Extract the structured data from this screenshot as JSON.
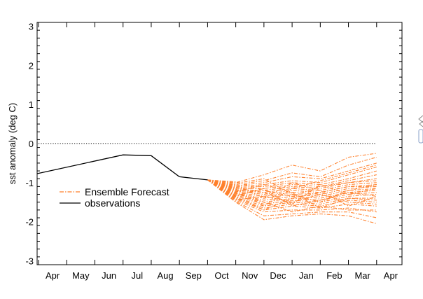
{
  "chart_data": {
    "type": "line",
    "ylabel": "sst anomaly (deg C)",
    "xlabel": "",
    "x_tick_labels": [
      "Apr",
      "May",
      "Jun",
      "Jul",
      "Aug",
      "Sep",
      "Oct",
      "Nov",
      "Dec",
      "Jan",
      "Feb",
      "Mar",
      "Apr"
    ],
    "ylim": [
      -3.1,
      3.1
    ],
    "y_ticks": [
      -3,
      -2,
      -1,
      0,
      1,
      2,
      3
    ],
    "xlim": [
      -0.55,
      12.4
    ],
    "reference_line": {
      "y": 0,
      "style": "dotted",
      "x_range": [
        -0.5,
        11.5
      ]
    },
    "legend": {
      "placement": "lower-left",
      "entries": [
        {
          "label": "Ensemble Forecast",
          "style": "dash-dot",
          "color": "#ff7f2a"
        },
        {
          "label": "observations",
          "style": "solid",
          "color": "#000000"
        }
      ]
    },
    "series": [
      {
        "name": "observations",
        "color": "#000000",
        "x": [
          -0.55,
          2.5,
          3.5,
          4.5,
          5.5
        ],
        "y": [
          -0.77,
          -0.29,
          -0.31,
          -0.85,
          -0.93
        ]
      },
      {
        "name": "Ensemble Forecast",
        "color": "#ff7f2a",
        "start": {
          "x": 5.5,
          "y": -0.93
        },
        "x": [
          6.5,
          7.5,
          8.5,
          9.5,
          10.5,
          11.5
        ],
        "members": [
          [
            -1.0,
            -0.8,
            -0.55,
            -0.7,
            -0.35,
            -0.25
          ],
          [
            -1.05,
            -0.95,
            -0.75,
            -0.85,
            -0.55,
            -0.35
          ],
          [
            -1.08,
            -1.0,
            -0.85,
            -0.9,
            -0.7,
            -0.5
          ],
          [
            -1.1,
            -1.05,
            -0.95,
            -1.0,
            -0.8,
            -0.6
          ],
          [
            -1.12,
            -1.1,
            -1.0,
            -1.05,
            -0.9,
            -0.7
          ],
          [
            -1.15,
            -1.15,
            -1.05,
            -1.1,
            -0.95,
            -0.8
          ],
          [
            -1.18,
            -1.2,
            -1.1,
            -1.15,
            -1.0,
            -0.9
          ],
          [
            -1.2,
            -1.25,
            -1.15,
            -1.2,
            -1.05,
            -1.0
          ],
          [
            -1.22,
            -1.3,
            -1.2,
            -1.25,
            -1.1,
            -1.05
          ],
          [
            -1.25,
            -1.35,
            -1.25,
            -1.3,
            -1.15,
            -1.1
          ],
          [
            -1.28,
            -1.4,
            -1.3,
            -1.35,
            -1.2,
            -1.15
          ],
          [
            -1.3,
            -1.45,
            -1.35,
            -1.4,
            -1.25,
            -1.2
          ],
          [
            -1.32,
            -1.5,
            -1.4,
            -1.45,
            -1.3,
            -1.25
          ],
          [
            -1.35,
            -1.55,
            -1.45,
            -1.5,
            -1.35,
            -1.3
          ],
          [
            -1.38,
            -1.6,
            -1.5,
            -1.55,
            -1.4,
            -1.4
          ],
          [
            -1.4,
            -1.65,
            -1.55,
            -1.6,
            -1.45,
            -1.5
          ],
          [
            -1.42,
            -1.7,
            -1.6,
            -1.65,
            -1.55,
            -1.6
          ],
          [
            -1.45,
            -1.75,
            -1.7,
            -1.7,
            -1.65,
            -1.75
          ],
          [
            -1.48,
            -1.85,
            -1.8,
            -1.75,
            -1.75,
            -1.9
          ],
          [
            -1.5,
            -1.95,
            -1.85,
            -1.8,
            -1.85,
            -2.05
          ],
          [
            -0.98,
            -1.2,
            -1.35,
            -1.1,
            -1.0,
            -0.95
          ],
          [
            -1.02,
            -0.9,
            -1.3,
            -1.5,
            -1.2,
            -1.05
          ],
          [
            -1.06,
            -1.4,
            -1.0,
            -1.2,
            -1.6,
            -1.35
          ],
          [
            -1.14,
            -1.25,
            -1.55,
            -1.05,
            -1.3,
            -1.15
          ],
          [
            -1.24,
            -1.05,
            -1.25,
            -1.65,
            -1.4,
            -1.45
          ],
          [
            -1.16,
            -1.6,
            -1.15,
            -0.95,
            -0.75,
            -0.55
          ],
          [
            -1.34,
            -1.15,
            -1.6,
            -1.45,
            -1.25,
            -1.35
          ],
          [
            -1.44,
            -1.35,
            -1.5,
            -1.3,
            -1.5,
            -1.55
          ],
          [
            -1.26,
            -1.5,
            -1.75,
            -1.6,
            -1.7,
            -1.7
          ],
          [
            -1.36,
            -1.7,
            -1.4,
            -1.25,
            -1.1,
            -1.1
          ]
        ]
      }
    ]
  }
}
